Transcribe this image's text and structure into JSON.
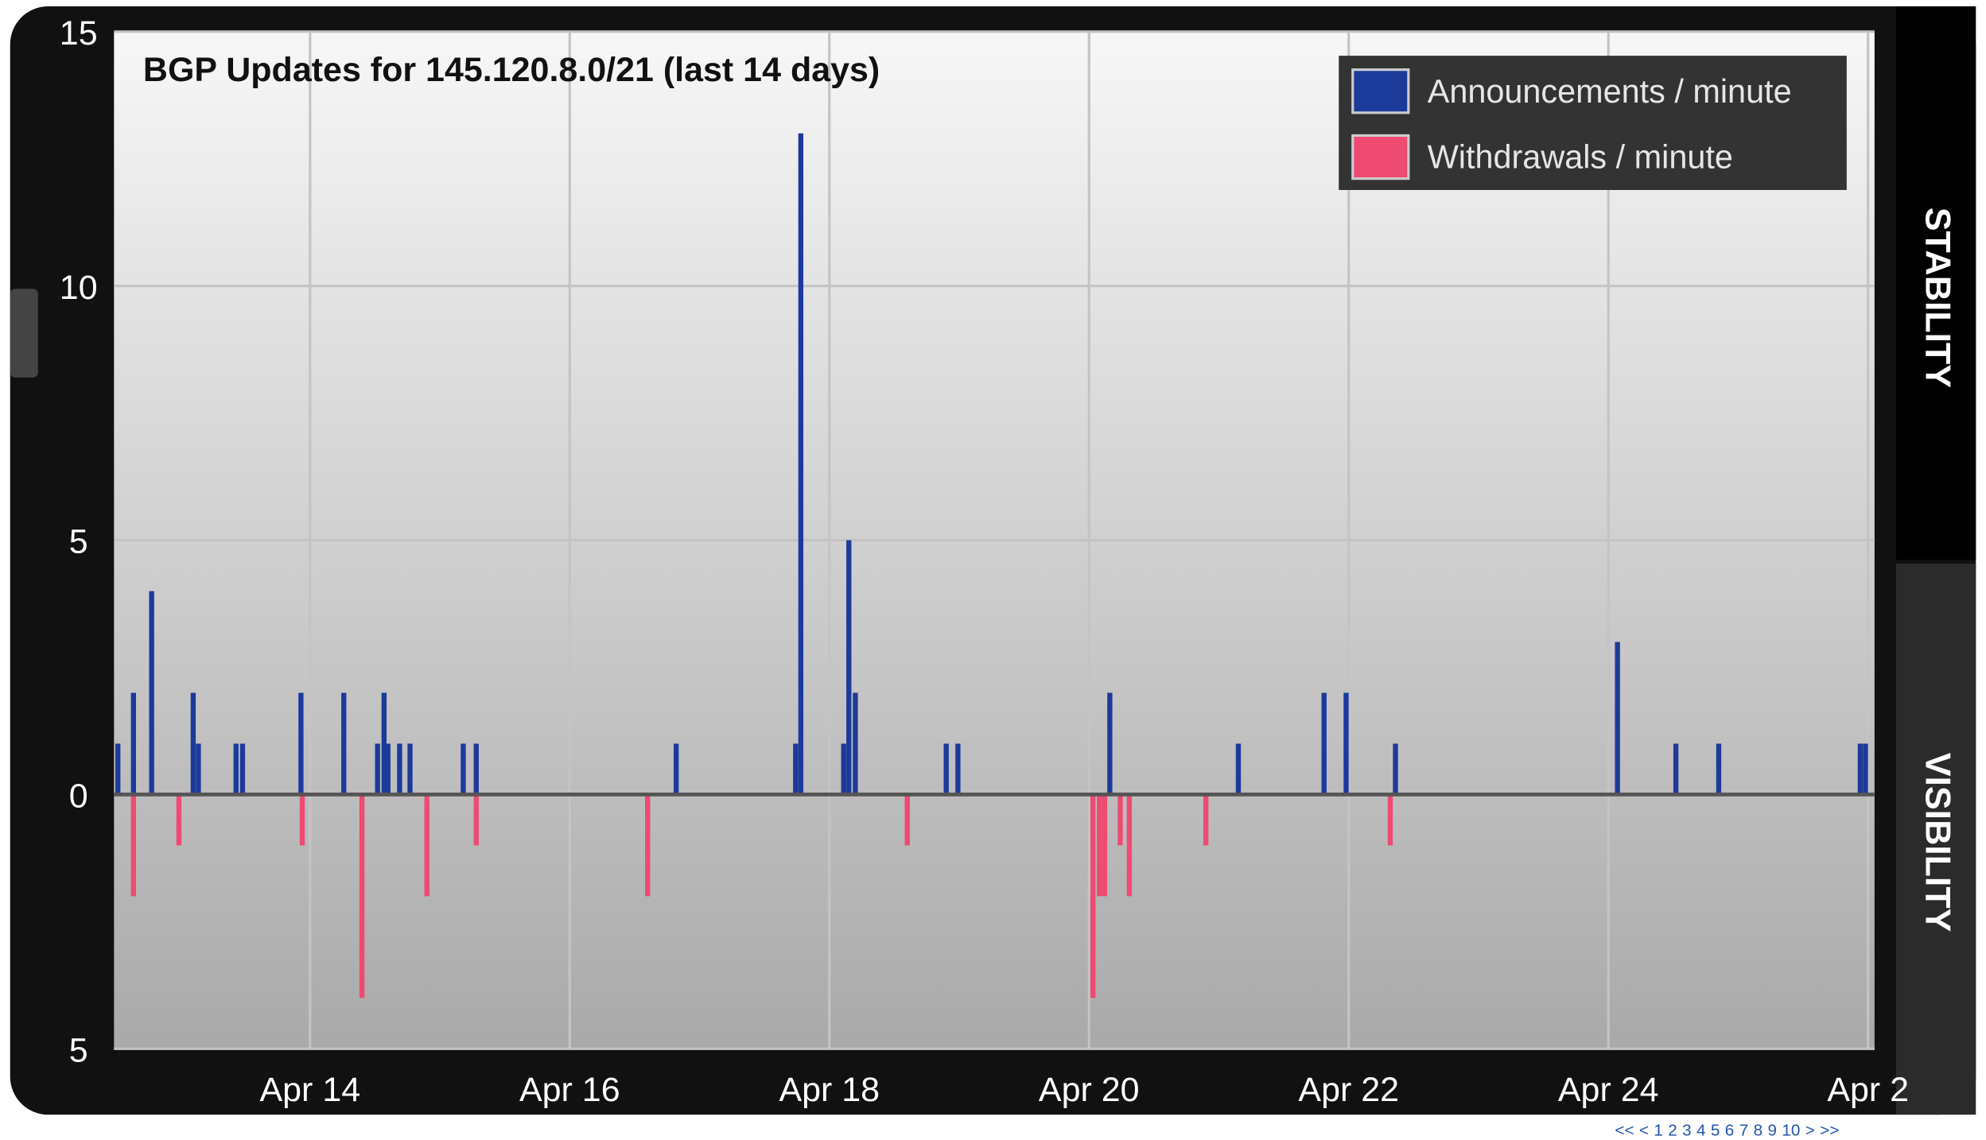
{
  "chart_data": {
    "type": "bar",
    "title": "BGP Updates for 145.120.8.0/21 (last 14 days)",
    "xlim": [
      12.49,
      26.05
    ],
    "xticks": [
      {
        "value": 14,
        "label": "Apr 14"
      },
      {
        "value": 16,
        "label": "Apr 16"
      },
      {
        "value": 18,
        "label": "Apr 18"
      },
      {
        "value": 20,
        "label": "Apr 20"
      },
      {
        "value": 22,
        "label": "Apr 22"
      },
      {
        "value": 24,
        "label": "Apr 24"
      },
      {
        "value": 26,
        "label": "Apr 2"
      }
    ],
    "ylim": [
      -5,
      15
    ],
    "yticks": [
      {
        "value": -5,
        "label": "5"
      },
      0,
      5,
      10,
      15
    ],
    "grid": true,
    "legend": "top-right",
    "series": [
      {
        "name": "Announcements / minute",
        "color": "#1c3a9a",
        "x": [
          12.52,
          12.64,
          12.78,
          13.1,
          13.14,
          13.43,
          13.48,
          13.93,
          14.26,
          14.52,
          14.57,
          14.6,
          14.69,
          14.77,
          15.18,
          15.28,
          16.82,
          17.74,
          17.78,
          18.11,
          18.15,
          18.2,
          18.9,
          18.99,
          20.16,
          21.15,
          21.81,
          21.98,
          22.36,
          24.07,
          24.52,
          24.85,
          25.94,
          25.98
        ],
        "values": [
          1,
          2,
          4,
          2,
          1,
          1,
          1,
          2,
          2,
          1,
          2,
          1,
          1,
          1,
          1,
          1,
          1,
          1,
          13,
          1,
          5,
          2,
          1,
          1,
          2,
          1,
          2,
          2,
          1,
          3,
          1,
          1,
          1,
          1
        ]
      },
      {
        "name": "Withdrawals / minute",
        "color": "#ee4a72",
        "x": [
          12.64,
          12.99,
          13.94,
          14.4,
          14.9,
          15.28,
          16.6,
          18.6,
          20.03,
          20.08,
          20.12,
          20.24,
          20.31,
          20.9,
          22.32
        ],
        "values": [
          -2,
          -1,
          -1,
          -4,
          -2,
          -1,
          -2,
          -1,
          -4,
          -2,
          -2,
          -1,
          -2,
          -1,
          -1
        ]
      }
    ]
  },
  "tabs": [
    "STABILITY",
    "VISIBILITY"
  ],
  "pagination": [
    "<<",
    "<",
    "1",
    "2",
    "3",
    "4",
    "5",
    "6",
    "7",
    "8",
    "9",
    "10",
    ">",
    ">>"
  ]
}
